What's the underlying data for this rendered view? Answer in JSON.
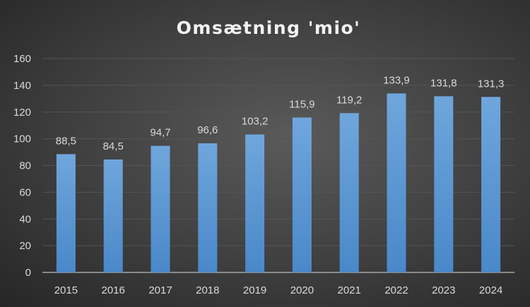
{
  "chart_data": {
    "type": "bar",
    "title": "Omsætning 'mio'",
    "xlabel": "",
    "ylabel": "",
    "categories": [
      "2015",
      "2016",
      "2017",
      "2018",
      "2019",
      "2020",
      "2021",
      "2022",
      "2023",
      "2024"
    ],
    "values": [
      88.5,
      84.5,
      94.7,
      96.6,
      103.2,
      115.9,
      119.2,
      133.9,
      131.8,
      131.3
    ],
    "data_labels": [
      "88,5",
      "84,5",
      "94,7",
      "96,6",
      "103,2",
      "115,9",
      "119,2",
      "133,9",
      "131,8",
      "131,3"
    ],
    "ylim": [
      0,
      160
    ],
    "yticks": [
      0,
      20,
      40,
      60,
      80,
      100,
      120,
      140,
      160
    ],
    "grid": true,
    "legend": "none",
    "colors": {
      "bar_top": "#6fa6dc",
      "bar_bottom": "#4a88c9",
      "grid": "#555555",
      "axis": "#a6a6a6"
    }
  }
}
